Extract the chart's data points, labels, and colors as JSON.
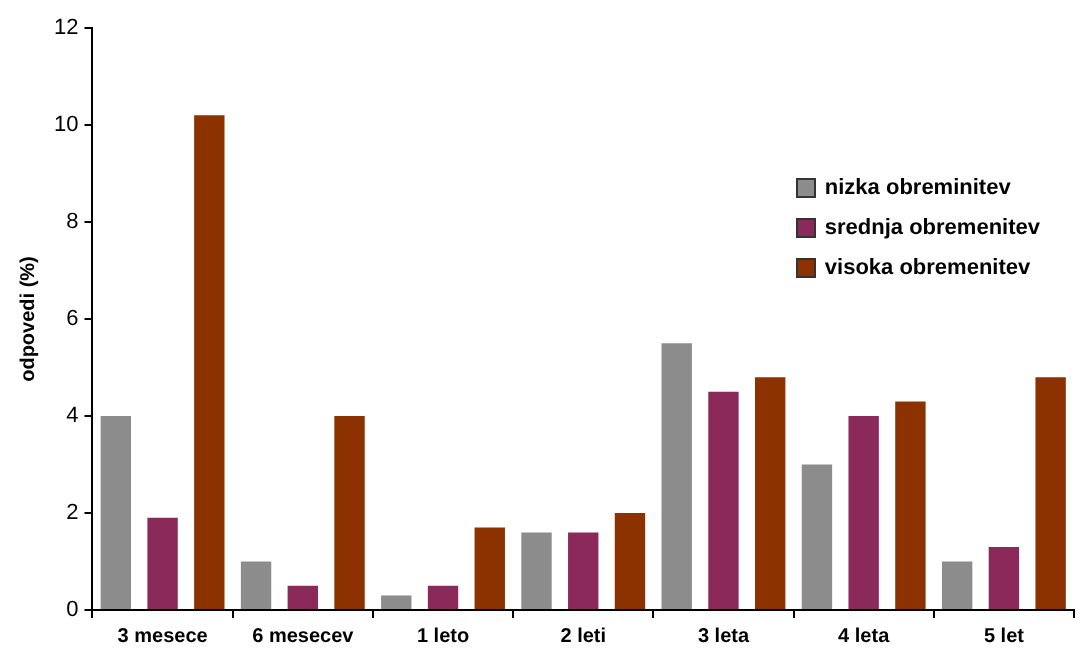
{
  "chart_data": {
    "type": "bar",
    "ylabel": "odpovedi (%)",
    "categories": [
      "3 mesece",
      "6 mesecev",
      "1 leto",
      "2 leti",
      "3 leta",
      "4 leta",
      "5 let"
    ],
    "series": [
      {
        "name": "nizka obreminitev",
        "color": "#8c8c8c",
        "values": [
          4,
          1,
          0.3,
          1.6,
          5.5,
          3,
          1
        ]
      },
      {
        "name": "srednja obremenitev",
        "color": "#8b2a5a",
        "values": [
          1.9,
          0.5,
          0.5,
          1.6,
          4.5,
          4,
          1.3
        ]
      },
      {
        "name": "visoka obremenitev",
        "color": "#8b3200",
        "values": [
          10.2,
          4,
          1.7,
          2,
          4.8,
          4.3,
          4.8
        ]
      }
    ],
    "ylim": [
      0,
      12
    ],
    "yticks": [
      0,
      2,
      4,
      6,
      8,
      10,
      12
    ],
    "grid": false,
    "legend": "right"
  }
}
